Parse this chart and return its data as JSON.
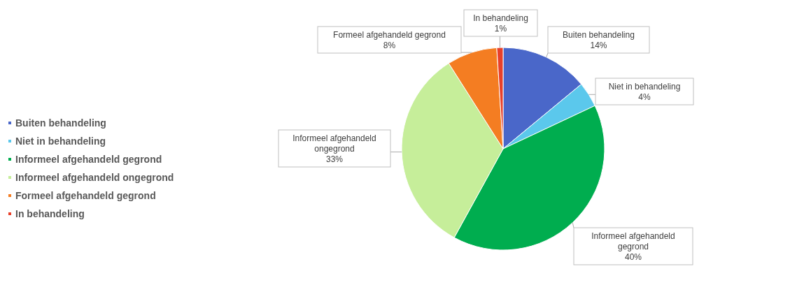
{
  "chart_data": {
    "type": "pie",
    "categories": [
      "Buiten behandeling",
      "Niet in behandeling",
      "Informeel afgehandeld gegrond",
      "Informeel afgehandeld ongegrond",
      "Formeel afgehandeld gegrond",
      "In behandeling"
    ],
    "values": [
      14,
      4,
      40,
      33,
      8,
      1
    ],
    "colors": [
      "#4a67c9",
      "#5bc8ec",
      "#00ad4f",
      "#c6ee9a",
      "#f47d22",
      "#e8402a"
    ],
    "value_labels": [
      "14%",
      "4%",
      "40%",
      "33%",
      "8%",
      "1%"
    ],
    "legend": "left"
  }
}
